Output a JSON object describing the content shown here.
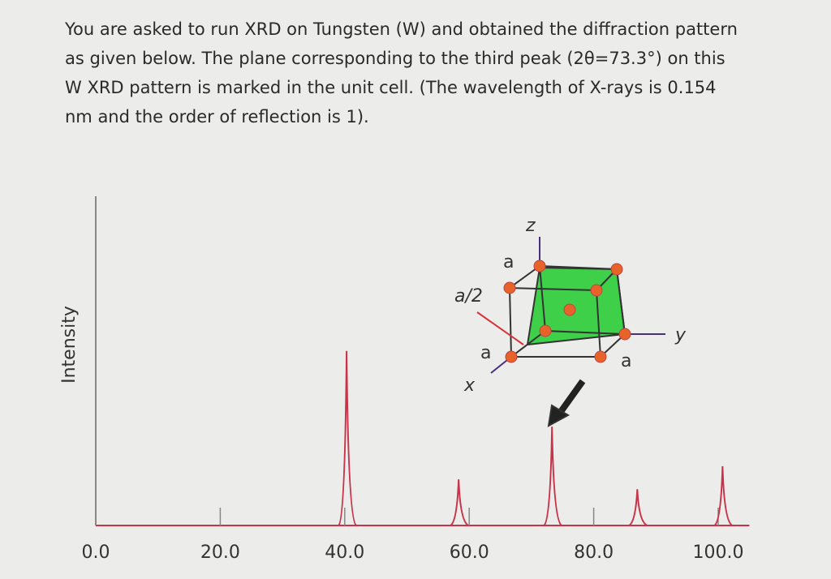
{
  "question": "You are asked to run XRD on Tungsten (W) and obtained the diffraction pattern as given below. The plane corresponding to the third peak (2θ=73.3°) on this W XRD pattern is marked in the unit cell. (The wavelength of X-rays is 0.154 nm and the order of reflection is 1).",
  "chart_data": {
    "type": "peaks",
    "y_label": "Intensity",
    "x": [
      40.3,
      58.3,
      73.3,
      87.0,
      100.7
    ],
    "values": [
      53,
      14,
      30,
      11,
      18
    ],
    "color": "#c8334a",
    "xlim": [
      0,
      105
    ],
    "ylim": [
      0,
      100
    ],
    "xticks": [
      {
        "value": 0,
        "label": "0.0"
      },
      {
        "value": 20,
        "label": "20.0"
      },
      {
        "value": 40,
        "label": "40.0"
      },
      {
        "value": 60,
        "label": "60.0"
      },
      {
        "value": 80,
        "label": "80.0"
      },
      {
        "value": 100,
        "label": "100.0"
      }
    ],
    "annotations": {
      "z": "z",
      "y": "y",
      "x": "x",
      "a_top": "a",
      "a_front": "a",
      "a_right": "a",
      "half": "a/2"
    }
  }
}
